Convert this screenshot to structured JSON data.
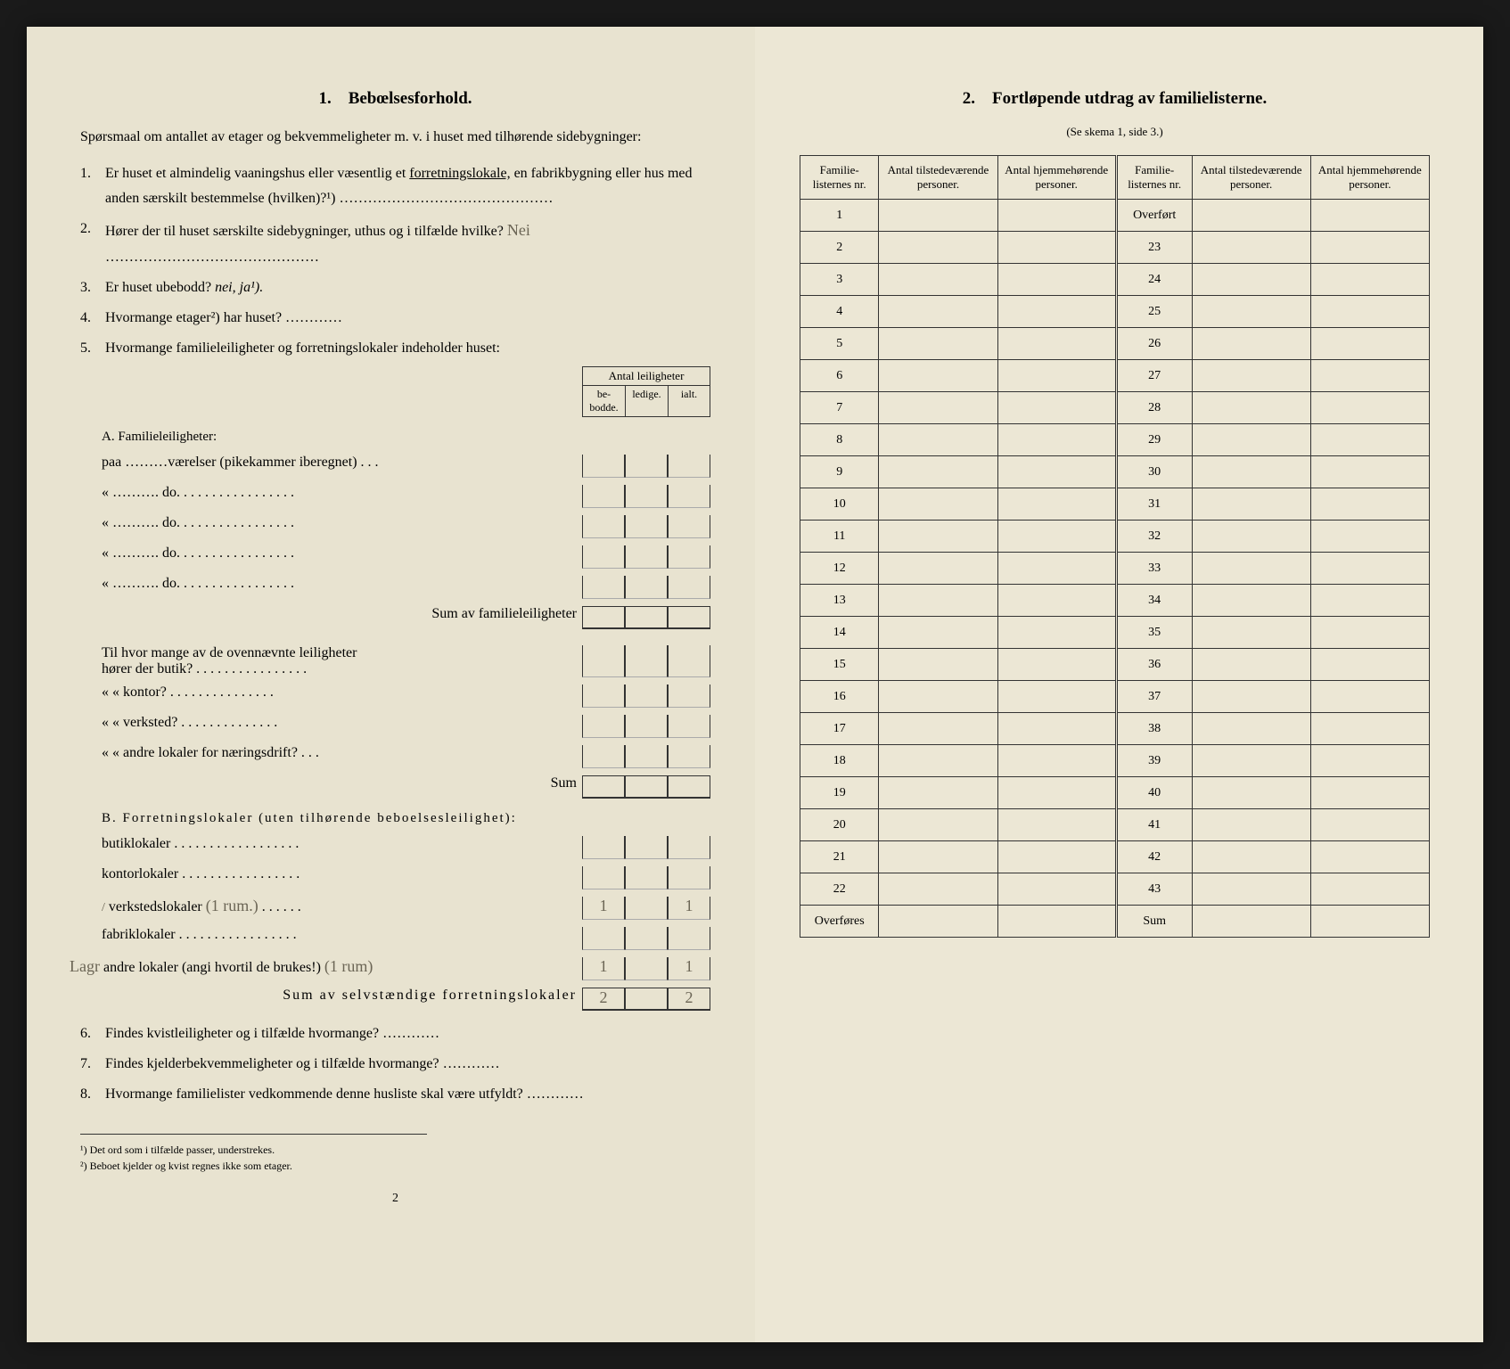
{
  "left": {
    "section_number": "1.",
    "section_title": "Bebœlsesforhold.",
    "intro": "Spørsmaal om antallet av etager og bekvemmeligheter m. v. i huset med tilhørende sidebygninger:",
    "q1_num": "1.",
    "q1": "Er huset et almindelig vaaningshus eller væsentlig et ",
    "q1_underline": "forretningslokale,",
    "q1_rest": " en fabrikbygning eller hus med anden særskilt bestemmelse (hvilken)?¹)",
    "q2_num": "2.",
    "q2": "Hører der til huset særskilte sidebygninger, uthus og i tilfælde hvilke?",
    "q2_hand": "Nei",
    "q3_num": "3.",
    "q3": "Er huset ubebodd?  ",
    "q3_italic": "nei,  ja¹).",
    "q4_num": "4.",
    "q4": "Hvormange etager²) har huset?",
    "q5_num": "5.",
    "q5": "Hvormange familieleiligheter og forretningslokaler indeholder huset:",
    "table_super": "Antal leiligheter",
    "col_bebodde": "be-\nbodde.",
    "col_ledige": "ledige.",
    "col_ialt": "ialt.",
    "sectionA": "A. Familieleiligheter:",
    "a_row1": "paa ………værelser (pikekammer iberegnet) . . .",
    "a_row2": "«   ……….     do.      . . . . . . . . . . . . . . . .",
    "a_row3": "«   ……….     do.      . . . . . . . . . . . . . . . .",
    "a_row4": "«   ……….     do.      . . . . . . . . . . . . . . . .",
    "a_row5": "«   ……….     do.      . . . . . . . . . . . . . . . .",
    "a_sum": "Sum av familieleiligheter",
    "a_mid1": "Til hvor mange av de ovennævnte leiligheter",
    "a_mid1b": "hører der butik? . . . . . . . . . . . . . . . .",
    "a_mid2": "«     «  kontor? . . . . . . . . . . . . . . .",
    "a_mid3": "«     «  verksted? . . . . . . . . . . . . . .",
    "a_mid4": "«     «  andre lokaler for næringsdrift? . . .",
    "a_mid_sum": "Sum",
    "sectionB": "B. Forretningslokaler (uten tilhørende beboelsesleilighet):",
    "b_row1": "butiklokaler . . . . . . . . . . . . . . . . . .",
    "b_row2": "kontorlokaler . . . . . . . . . . . . . . . . .",
    "b_row3": "verkstedslokaler",
    "b_row3_hand": "(1 rum.)",
    "b_row3_v1": "1",
    "b_row3_v2": "1",
    "b_row4": "fabriklokaler . . . . . . . . . . . . . . . . .",
    "b_row5_pre": "Lagr",
    "b_row5": "andre lokaler (angi hvortil de brukes!)",
    "b_row5_hand": "(1 rum)",
    "b_row5_v1": "1",
    "b_row5_v2": "1",
    "b_sum": "Sum av selvstændige forretningslokaler",
    "b_sum_v1": "2",
    "b_sum_v2": "2",
    "q6_num": "6.",
    "q6": "Findes kvistleiligheter og i tilfælde hvormange?",
    "q7_num": "7.",
    "q7": "Findes kjelderbekvemmeligheter og i tilfælde hvormange?",
    "q8_num": "8.",
    "q8": "Hvormange familielister vedkommende denne husliste skal være utfyldt?",
    "footnote1": "¹) Det ord som i tilfælde passer, understrekes.",
    "footnote2": "²) Beboet kjelder og kvist regnes ikke som etager.",
    "page_num": "2"
  },
  "right": {
    "section_number": "2.",
    "section_title": "Fortløpende utdrag av familielisterne.",
    "section_sub": "(Se skema 1, side 3.)",
    "col1": "Familie-listernes nr.",
    "col2": "Antal tilstedeværende personer.",
    "col3": "Antal hjemmehørende personer.",
    "col4": "Familie-listernes nr.",
    "col5": "Antal tilstedeværende personer.",
    "col6": "Antal hjemmehørende personer.",
    "left_nums": [
      "1",
      "2",
      "3",
      "4",
      "5",
      "6",
      "7",
      "8",
      "9",
      "10",
      "11",
      "12",
      "13",
      "14",
      "15",
      "16",
      "17",
      "18",
      "19",
      "20",
      "21",
      "22",
      "Overføres"
    ],
    "right_nums": [
      "Overført",
      "23",
      "24",
      "25",
      "26",
      "27",
      "28",
      "29",
      "30",
      "31",
      "32",
      "33",
      "34",
      "35",
      "36",
      "37",
      "38",
      "39",
      "40",
      "41",
      "42",
      "43",
      "Sum"
    ]
  },
  "colors": {
    "paper": "#e8e3d0",
    "paper_right": "#ece7d5",
    "ink": "#2a2a28",
    "background": "#1a1a1a"
  }
}
